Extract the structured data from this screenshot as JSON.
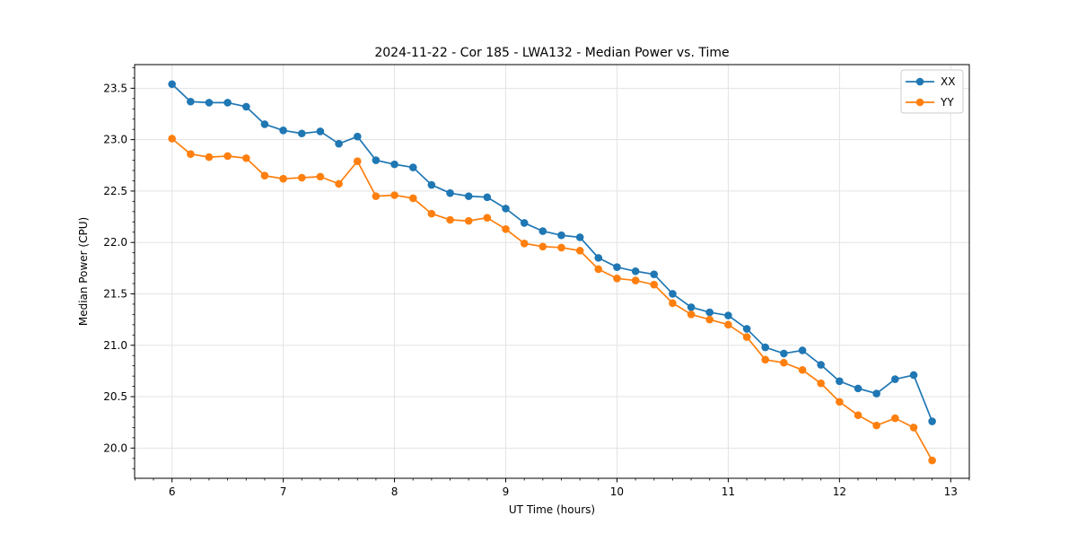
{
  "chart_data": {
    "type": "line",
    "title": "2024-11-22 - Cor 185 - LWA132 - Median Power vs. Time",
    "xlabel": "UT Time (hours)",
    "ylabel": "Median Power (CPU)",
    "xlim": [
      5.664,
      13.167
    ],
    "ylim": [
      19.706,
      23.73
    ],
    "xticks": [
      6,
      7,
      8,
      9,
      10,
      11,
      12,
      13
    ],
    "yticks": [
      20.0,
      20.5,
      21.0,
      21.5,
      22.0,
      22.5,
      23.0,
      23.5
    ],
    "grid": true,
    "legend_position": "upper right",
    "x": [
      6.0,
      6.167,
      6.333,
      6.5,
      6.667,
      6.833,
      7.0,
      7.167,
      7.333,
      7.5,
      7.667,
      7.833,
      8.0,
      8.167,
      8.333,
      8.5,
      8.667,
      8.833,
      9.0,
      9.167,
      9.333,
      9.5,
      9.667,
      9.833,
      10.0,
      10.167,
      10.333,
      10.5,
      10.667,
      10.833,
      11.0,
      11.167,
      11.333,
      11.5,
      11.667,
      11.833,
      12.0,
      12.167,
      12.333,
      12.5,
      12.667,
      12.833
    ],
    "series": [
      {
        "name": "XX",
        "color": "#1f77b4",
        "values": [
          23.54,
          23.37,
          23.36,
          23.36,
          23.32,
          23.15,
          23.09,
          23.06,
          23.08,
          22.96,
          23.03,
          22.8,
          22.76,
          22.73,
          22.56,
          22.48,
          22.45,
          22.44,
          22.33,
          22.19,
          22.11,
          22.07,
          22.05,
          21.85,
          21.76,
          21.72,
          21.69,
          21.5,
          21.37,
          21.32,
          21.29,
          21.16,
          20.98,
          20.92,
          20.95,
          20.81,
          20.65,
          20.58,
          20.53,
          20.67,
          20.71,
          20.26
        ]
      },
      {
        "name": "YY",
        "color": "#ff7f0e",
        "values": [
          23.01,
          22.86,
          22.83,
          22.84,
          22.82,
          22.65,
          22.62,
          22.63,
          22.64,
          22.57,
          22.79,
          22.45,
          22.46,
          22.43,
          22.28,
          22.22,
          22.21,
          22.24,
          22.13,
          21.99,
          21.96,
          21.95,
          21.92,
          21.74,
          21.65,
          21.63,
          21.59,
          21.41,
          21.3,
          21.25,
          21.2,
          21.08,
          20.86,
          20.83,
          20.76,
          20.63,
          20.45,
          20.32,
          20.22,
          20.29,
          20.2,
          19.88
        ]
      }
    ],
    "colors": {
      "background": "#ffffff",
      "grid": "#e3e3e3",
      "axis": "#000000",
      "legend_border": "#cccccc"
    }
  }
}
